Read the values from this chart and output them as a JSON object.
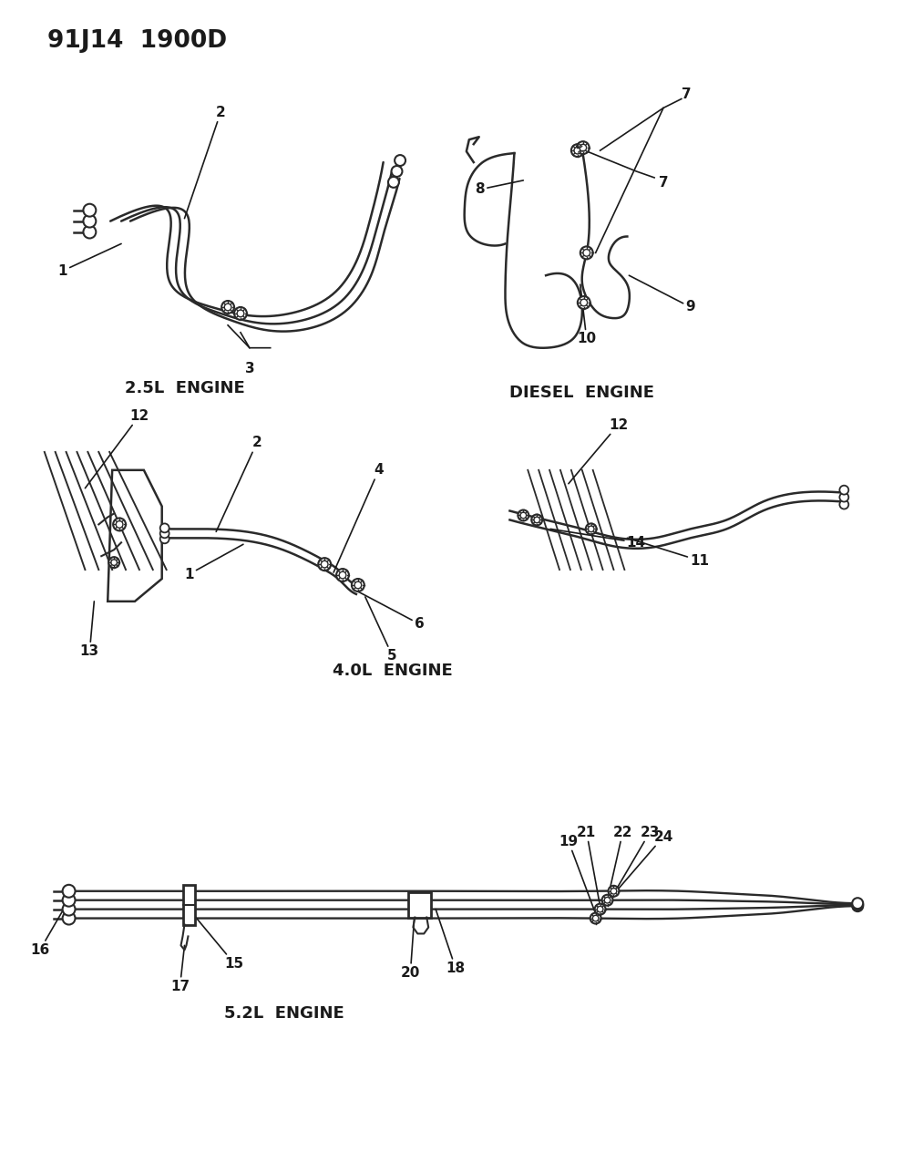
{
  "title": "91J14  1900D",
  "bg": "#ffffff",
  "lc": "#2a2a2a",
  "tc": "#1a1a1a",
  "lw": 1.8,
  "fig_w": 9.91,
  "fig_h": 12.75,
  "dpi": 100,
  "sections": {
    "top_left_label": "2.5L  ENGINE",
    "top_right_label": "DIESEL  ENGINE",
    "mid_label": "4.0L  ENGINE",
    "bot_label": "5.2L  ENGINE"
  }
}
